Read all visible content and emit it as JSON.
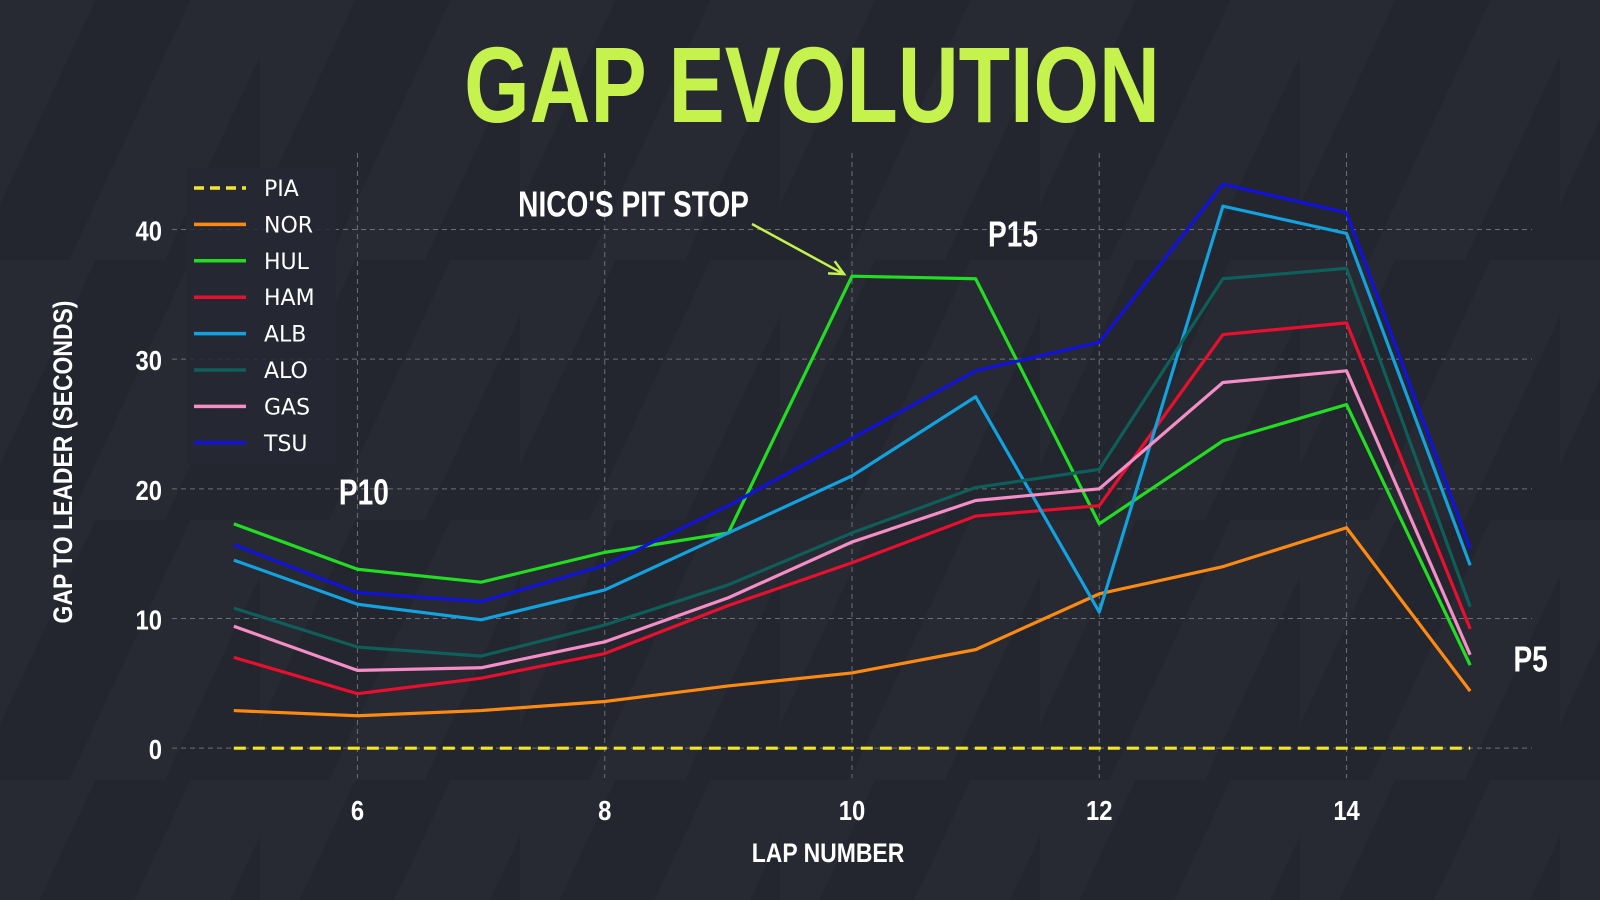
{
  "chart_data": {
    "type": "line",
    "title": "GAP EVOLUTION",
    "xlabel": "LAP NUMBER",
    "ylabel": "GAP TO LEADER (SECONDS)",
    "xlim": [
      4.5,
      15.5
    ],
    "ylim": [
      -2.3,
      45.9
    ],
    "xticks": [
      6,
      8,
      10,
      12,
      14
    ],
    "yticks": [
      0,
      10,
      20,
      30,
      40
    ],
    "grid": true,
    "legend_position": "top-left",
    "x": [
      5,
      6,
      7,
      8,
      9,
      10,
      11,
      12,
      13,
      14,
      15
    ],
    "series": [
      {
        "name": "PIA",
        "color": "#f2e52a",
        "dashed": true,
        "values": [
          0,
          0,
          0,
          0,
          0,
          0,
          0,
          0,
          0,
          0,
          0
        ]
      },
      {
        "name": "NOR",
        "color": "#ff8a12",
        "values": [
          2.9,
          2.5,
          2.9,
          3.6,
          4.8,
          5.8,
          7.6,
          11.9,
          14.0,
          17.0,
          4.4
        ]
      },
      {
        "name": "HUL",
        "color": "#22dd22",
        "values": [
          17.3,
          13.8,
          12.8,
          15.1,
          16.6,
          36.4,
          36.2,
          17.3,
          23.7,
          26.5,
          6.4
        ]
      },
      {
        "name": "HAM",
        "color": "#e8102e",
        "values": [
          7.0,
          4.2,
          5.4,
          7.3,
          11.0,
          14.3,
          17.9,
          18.7,
          31.9,
          32.8,
          9.2
        ]
      },
      {
        "name": "ALB",
        "color": "#13a2dd",
        "values": [
          14.5,
          11.1,
          9.9,
          12.2,
          16.6,
          21.0,
          27.1,
          10.5,
          41.8,
          39.7,
          14.1
        ]
      },
      {
        "name": "ALO",
        "color": "#0e5f5a",
        "values": [
          10.8,
          7.8,
          7.1,
          9.5,
          12.6,
          16.6,
          20.1,
          21.5,
          36.2,
          37.0,
          10.9
        ]
      },
      {
        "name": "GAS",
        "color": "#f58ec6",
        "values": [
          9.4,
          6.0,
          6.2,
          8.2,
          11.6,
          15.9,
          19.1,
          20.0,
          28.2,
          29.1,
          7.2
        ]
      },
      {
        "name": "TSU",
        "color": "#1212dd",
        "values": [
          15.7,
          12.0,
          11.3,
          14.1,
          18.7,
          23.9,
          29.1,
          31.3,
          43.5,
          41.3,
          15.4
        ]
      }
    ],
    "annotations": [
      {
        "text": "P10",
        "x": 5.85,
        "y": 18.8
      },
      {
        "text": "P15",
        "x": 11.1,
        "y": 38.7
      },
      {
        "text": "P5",
        "x": 15.35,
        "y": 5.9
      },
      {
        "text": "NICO'S PIT STOP",
        "x": 7.3,
        "y": 41.0,
        "arrow_to": [
          10,
          36.4
        ]
      }
    ]
  }
}
